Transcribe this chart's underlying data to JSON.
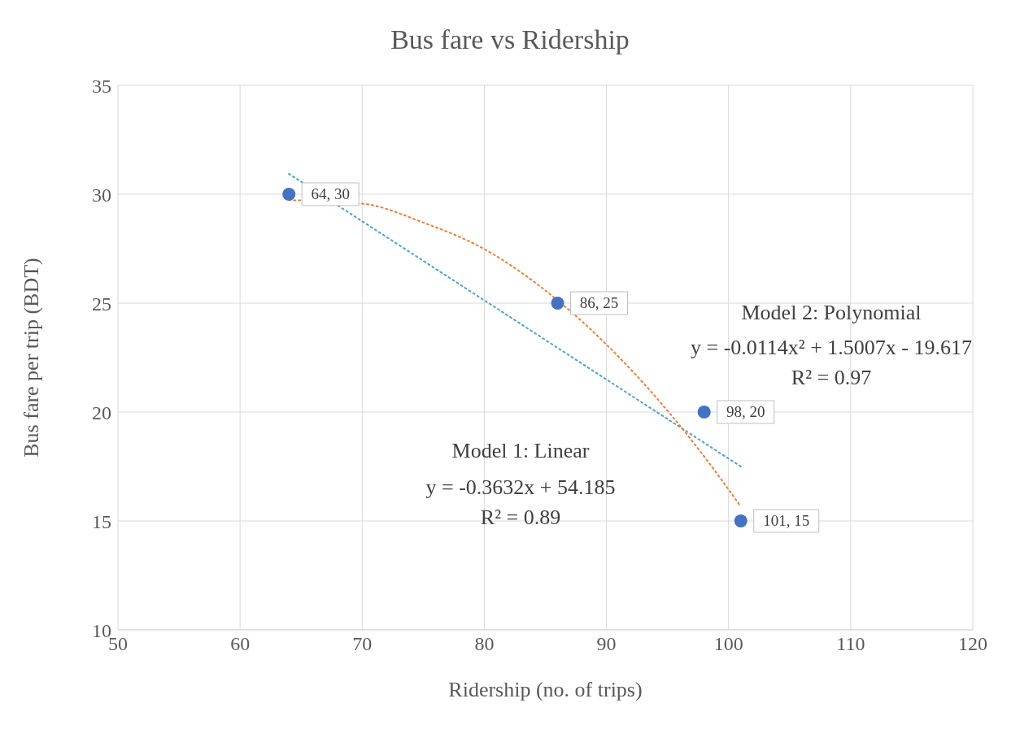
{
  "chart_data": {
    "type": "scatter",
    "title": "Bus fare vs Ridership",
    "xlabel": "Ridership (no. of trips)",
    "ylabel": "Bus fare per trip (BDT)",
    "xlim": [
      50,
      120
    ],
    "xticks": [
      50,
      60,
      70,
      80,
      90,
      100,
      110,
      120
    ],
    "ylim": [
      10,
      35
    ],
    "yticks": [
      10,
      15,
      20,
      25,
      30,
      35
    ],
    "grid": true,
    "legend": false,
    "series": [
      {
        "color": "#4472c4",
        "marker": "circle",
        "x": [
          64,
          86,
          98,
          101
        ],
        "values": [
          30,
          25,
          20,
          15
        ],
        "value_labels": [
          "64, 30",
          "86, 25",
          "98, 20",
          "101, 15"
        ]
      },
      {
        "type": "line",
        "color": "#4aa3c8",
        "line_style": "dotted",
        "marker": "none",
        "x": [
          64,
          101
        ],
        "values": [
          30.94,
          17.5
        ]
      },
      {
        "type": "line",
        "color": "#ed7d31",
        "line_style": "dotted",
        "marker": "none",
        "x": [
          64,
          70,
          75,
          80,
          86,
          90,
          95,
          98,
          101
        ],
        "values": [
          29.73,
          29.57,
          28.7,
          27.48,
          25.13,
          23.1,
          20.06,
          17.96,
          15.66
        ]
      }
    ],
    "annotations": [
      "Model 1: Linear",
      "y = -0.3632x + 54.185",
      "R² = 0.89",
      "Model 2: Polynomial",
      "y = -0.0114x² + 1.5007x - 19.617",
      "R² = 0.97"
    ]
  }
}
